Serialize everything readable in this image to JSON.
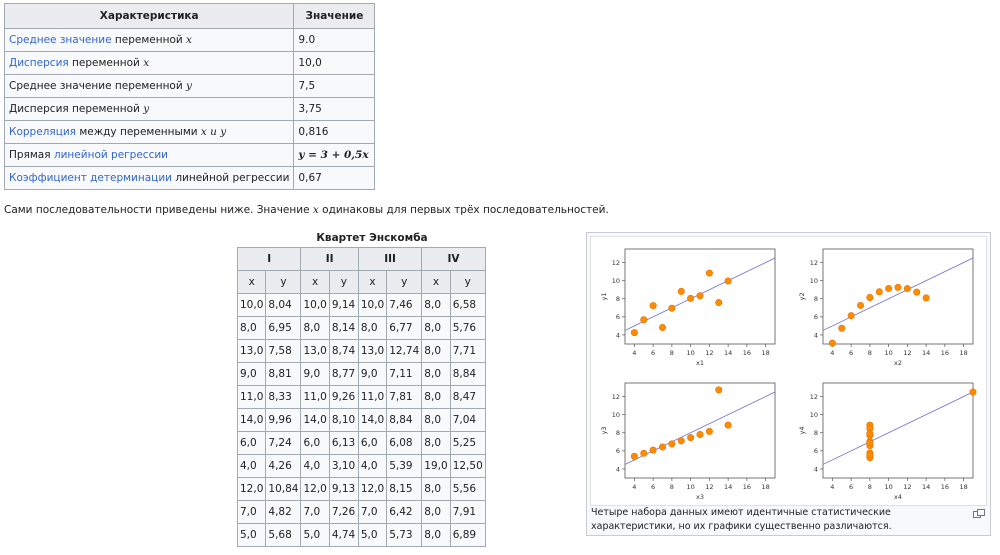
{
  "stats": {
    "header": {
      "characteristic": "Характеристика",
      "value": "Значение"
    },
    "rows": [
      {
        "link": "Среднее значение",
        "text": " переменной ",
        "math": "x",
        "value": "9.0"
      },
      {
        "link": "Дисперсия",
        "text": " переменной ",
        "math": "x",
        "value": "10,0"
      },
      {
        "link": "",
        "text": "Среднее значение переменной ",
        "math": "y",
        "value": "7,5"
      },
      {
        "link": "",
        "text": "Дисперсия переменной ",
        "math": "y",
        "value": "3,75"
      },
      {
        "link": "Корреляция",
        "text": " между переменными ",
        "math": "x и y",
        "value": "0,816"
      },
      {
        "link": "линейной регрессии",
        "pre": "Прямая ",
        "text": "",
        "math": "",
        "value": "y = 3 + 0,5x"
      },
      {
        "link": "Коэффициент детерминации",
        "text": " линейной регрессии",
        "math": "",
        "value": "0,67"
      }
    ]
  },
  "intro": {
    "before": "Сами последовательности приведены ниже. Значение ",
    "math": "x",
    "after": " одинаковы для первых трёх последовательностей."
  },
  "quartet": {
    "caption": "Квартет Энскомба",
    "groups": [
      "I",
      "II",
      "III",
      "IV"
    ],
    "sub": [
      "x",
      "y",
      "x",
      "y",
      "x",
      "y",
      "x",
      "y"
    ],
    "rows": [
      [
        "10,0",
        "8,04",
        "10,0",
        "9,14",
        "10,0",
        "7,46",
        "8,0",
        "6,58"
      ],
      [
        "8,0",
        "6,95",
        "8,0",
        "8,14",
        "8,0",
        "6,77",
        "8,0",
        "5,76"
      ],
      [
        "13,0",
        "7,58",
        "13,0",
        "8,74",
        "13,0",
        "12,74",
        "8,0",
        "7,71"
      ],
      [
        "9,0",
        "8,81",
        "9,0",
        "8,77",
        "9,0",
        "7,11",
        "8,0",
        "8,84"
      ],
      [
        "11,0",
        "8,33",
        "11,0",
        "9,26",
        "11,0",
        "7,81",
        "8,0",
        "8,47"
      ],
      [
        "14,0",
        "9,96",
        "14,0",
        "8,10",
        "14,0",
        "8,84",
        "8,0",
        "7,04"
      ],
      [
        "6,0",
        "7,24",
        "6,0",
        "6,13",
        "6,0",
        "6,08",
        "8,0",
        "5,25"
      ],
      [
        "4,0",
        "4,26",
        "4,0",
        "3,10",
        "4,0",
        "5,39",
        "19,0",
        "12,50"
      ],
      [
        "12,0",
        "10,84",
        "12,0",
        "9,13",
        "12,0",
        "8,15",
        "8,0",
        "5,56"
      ],
      [
        "7,0",
        "4,82",
        "7,0",
        "7,26",
        "7,0",
        "6,42",
        "8,0",
        "7,91"
      ],
      [
        "5,0",
        "5,68",
        "5,0",
        "4,74",
        "5,0",
        "5,73",
        "8,0",
        "6,89"
      ]
    ]
  },
  "figure": {
    "caption": "Четыре набора данных имеют идентичные статистические характеристики, но их графики существенно различаются.",
    "icon": "enlarge-icon",
    "colors": {
      "point": "#ff8c00",
      "point_stroke": "#e67300",
      "line": "#6b6bd6",
      "axis": "#555555"
    },
    "chart_data": [
      {
        "type": "scatter",
        "xlabel": "x1",
        "ylabel": "y1",
        "xticks": [
          4,
          6,
          8,
          10,
          12,
          14,
          16,
          18
        ],
        "yticks": [
          4,
          6,
          8,
          10,
          12
        ],
        "xlim": [
          3,
          19
        ],
        "ylim": [
          3,
          13.5
        ],
        "x": [
          10,
          8,
          13,
          9,
          11,
          14,
          6,
          4,
          12,
          7,
          5
        ],
        "y": [
          8.04,
          6.95,
          7.58,
          8.81,
          8.33,
          9.96,
          7.24,
          4.26,
          10.84,
          4.82,
          5.68
        ],
        "fit": [
          3,
          0.5
        ]
      },
      {
        "type": "scatter",
        "xlabel": "x2",
        "ylabel": "y2",
        "xticks": [
          4,
          6,
          8,
          10,
          12,
          14,
          16,
          18
        ],
        "yticks": [
          4,
          6,
          8,
          10,
          12
        ],
        "xlim": [
          3,
          19
        ],
        "ylim": [
          3,
          13.5
        ],
        "x": [
          10,
          8,
          13,
          9,
          11,
          14,
          6,
          4,
          12,
          7,
          5
        ],
        "y": [
          9.14,
          8.14,
          8.74,
          8.77,
          9.26,
          8.1,
          6.13,
          3.1,
          9.13,
          7.26,
          4.74
        ],
        "fit": [
          3,
          0.5
        ]
      },
      {
        "type": "scatter",
        "xlabel": "x3",
        "ylabel": "y3",
        "xticks": [
          4,
          6,
          8,
          10,
          12,
          14,
          16,
          18
        ],
        "yticks": [
          4,
          6,
          8,
          10,
          12
        ],
        "xlim": [
          3,
          19
        ],
        "ylim": [
          3,
          13.5
        ],
        "x": [
          10,
          8,
          13,
          9,
          11,
          14,
          6,
          4,
          12,
          7,
          5
        ],
        "y": [
          7.46,
          6.77,
          12.74,
          7.11,
          7.81,
          8.84,
          6.08,
          5.39,
          8.15,
          6.42,
          5.73
        ],
        "fit": [
          3,
          0.5
        ]
      },
      {
        "type": "scatter",
        "xlabel": "x4",
        "ylabel": "y4",
        "xticks": [
          4,
          6,
          8,
          10,
          12,
          14,
          16,
          18
        ],
        "yticks": [
          4,
          6,
          8,
          10,
          12
        ],
        "xlim": [
          3,
          19
        ],
        "ylim": [
          3,
          13.5
        ],
        "x": [
          8,
          8,
          8,
          8,
          8,
          8,
          8,
          19,
          8,
          8,
          8
        ],
        "y": [
          6.58,
          5.76,
          7.71,
          8.84,
          8.47,
          7.04,
          5.25,
          12.5,
          5.56,
          7.91,
          6.89
        ],
        "fit": [
          3,
          0.5
        ]
      }
    ]
  }
}
